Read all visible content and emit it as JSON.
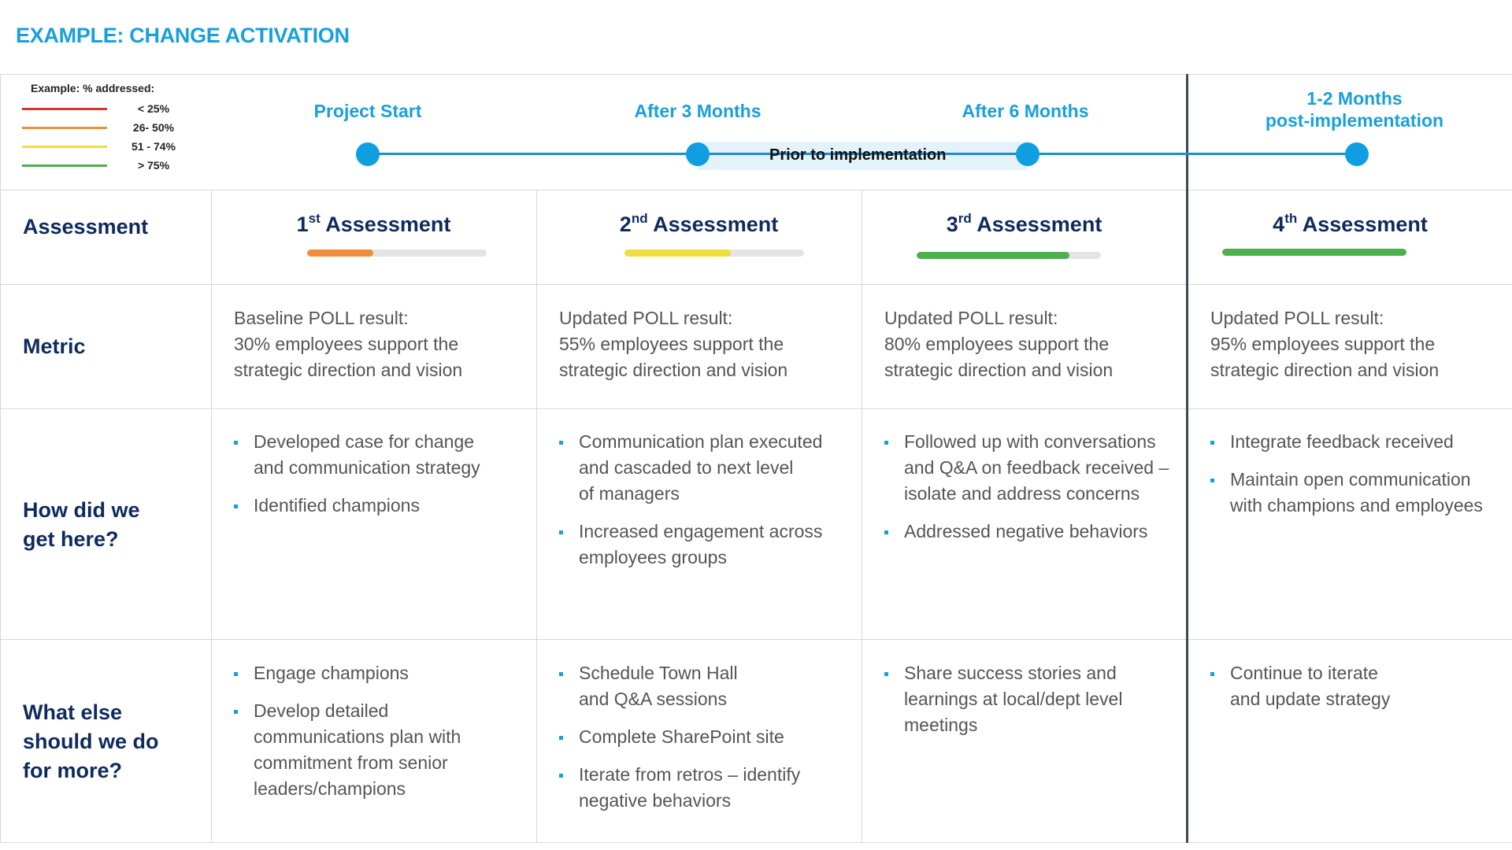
{
  "title": "EXAMPLE: CHANGE ACTIVATION",
  "legend": {
    "title": "Example: % addressed:",
    "items": [
      {
        "label": "< 25%",
        "color": "#d9352f"
      },
      {
        "label": "26- 50%",
        "color": "#ef8f3b"
      },
      {
        "label": "51 - 74%",
        "color": "#f0dc3c"
      },
      {
        "label": "> 75%",
        "color": "#4fae4d"
      }
    ]
  },
  "timeline": {
    "phases": [
      "Project Start",
      "After 3 Months",
      "After 6 Months"
    ],
    "post_phase_line1": "1-2  Months",
    "post_phase_line2": "post-implementation",
    "band_label": "Prior to implementation"
  },
  "row_headers": {
    "assessment": "Assessment",
    "metric": "Metric",
    "how_line1": "How did we",
    "how_line2": "get here?",
    "what_line1": "What else",
    "what_line2": "should we do",
    "what_line3": "for more?"
  },
  "columns": [
    {
      "num": "1",
      "suffix": "st",
      "assessment": "Assessment",
      "progress": 0.37,
      "color": "#ef8f3b",
      "metric_lines": [
        "Baseline POLL result:",
        "30% employees support the",
        "strategic direction and vision"
      ],
      "how": [
        [
          "Developed case for change",
          "and communication strategy"
        ],
        [
          "Identified champions"
        ]
      ],
      "what": [
        [
          "Engage champions"
        ],
        [
          "Develop detailed",
          "communications plan with",
          "commitment from senior",
          "leaders/champions"
        ]
      ]
    },
    {
      "num": "2",
      "suffix": "nd",
      "assessment": "Assessment",
      "progress": 0.59,
      "color": "#f0dc3c",
      "metric_lines": [
        "Updated POLL result:",
        "55% employees support the",
        "strategic direction and vision"
      ],
      "how": [
        [
          "Communication plan executed",
          "and cascaded to next level",
          "of managers"
        ],
        [
          "Increased engagement across",
          "employees groups"
        ]
      ],
      "what": [
        [
          "Schedule Town Hall",
          "and Q&A sessions"
        ],
        [
          "Complete SharePoint site"
        ],
        [
          "Iterate from retros – identify",
          "negative behaviors"
        ]
      ]
    },
    {
      "num": "3",
      "suffix": "rd",
      "assessment": "Assessment",
      "progress": 0.83,
      "color": "#4fae4d",
      "metric_lines": [
        "Updated POLL result:",
        "80% employees support the",
        "strategic direction and vision"
      ],
      "how": [
        [
          "Followed up with conversations",
          "and Q&A on feedback received –",
          "isolate and address concerns"
        ],
        [
          "Addressed negative behaviors"
        ]
      ],
      "what": [
        [
          "Share success stories and",
          "learnings at local/dept level",
          "meetings"
        ]
      ]
    },
    {
      "num": "4",
      "suffix": "th",
      "assessment": "Assessment",
      "progress": 1.0,
      "color": "#4fae4d",
      "metric_lines": [
        "Updated POLL result:",
        "95% employees support the",
        "strategic direction and vision"
      ],
      "how": [
        [
          "Integrate feedback received"
        ],
        [
          "Maintain open communication",
          "with champions and employees"
        ]
      ],
      "what": [
        [
          "Continue to iterate",
          "and update strategy"
        ]
      ]
    }
  ]
}
